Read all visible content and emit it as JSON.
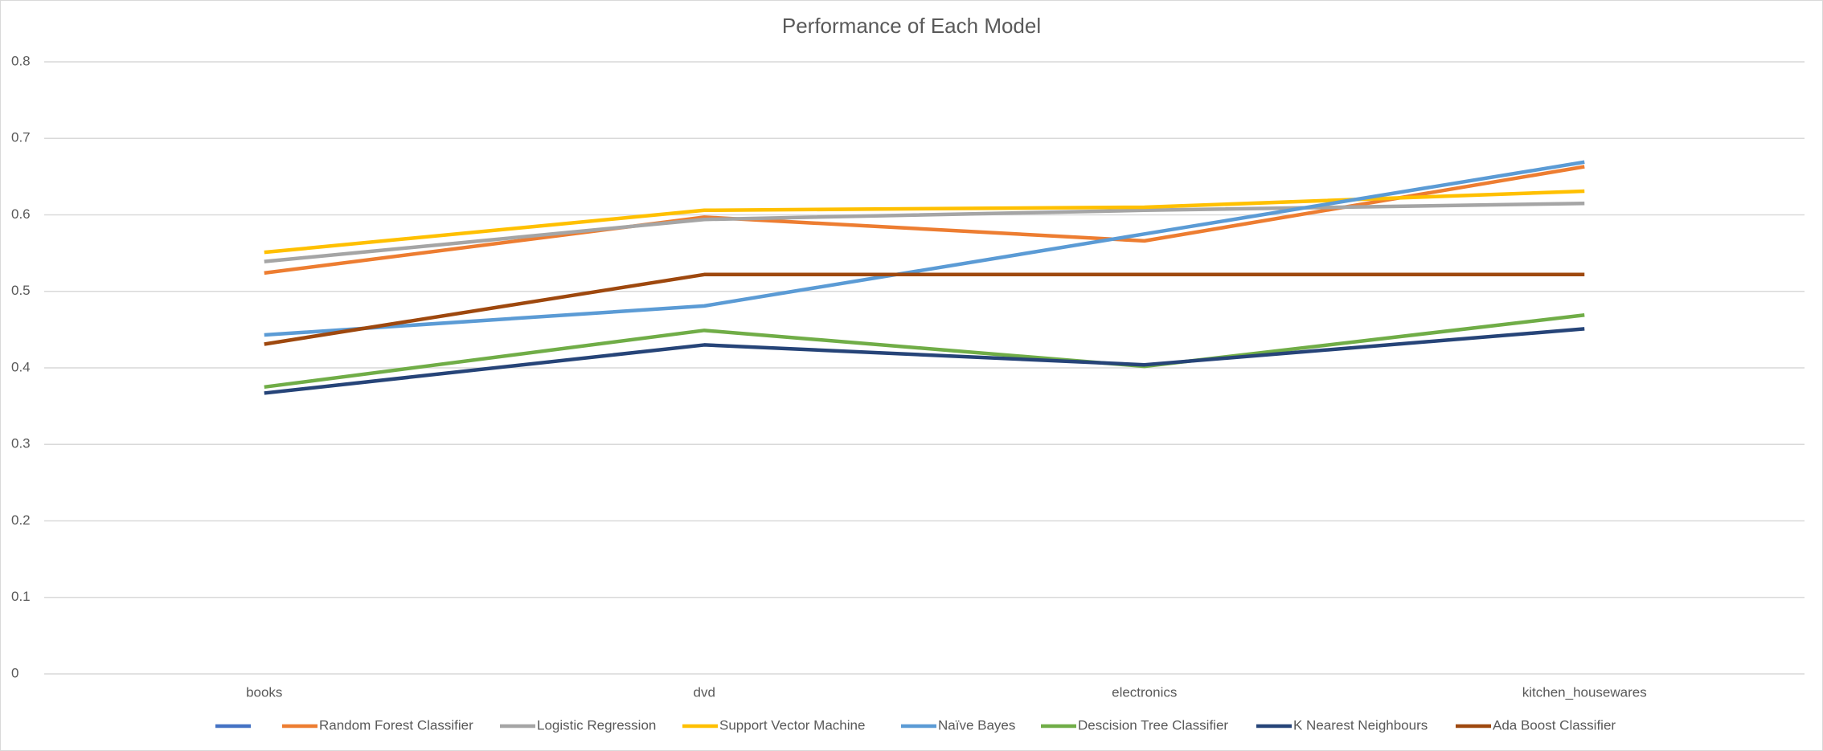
{
  "chart_data": {
    "type": "line",
    "title": "Performance of Each Model",
    "categories": [
      "books",
      "dvd",
      "electronics",
      "kitchen_housewares"
    ],
    "ylim": [
      0,
      0.8
    ],
    "yticks": [
      0,
      0.1,
      0.2,
      0.3,
      0.4,
      0.5,
      0.6,
      0.7,
      0.8
    ],
    "grid": true,
    "legend": "bottom",
    "series": [
      {
        "name": null,
        "color": "#4472C4",
        "values": [
          null,
          null,
          null,
          null
        ]
      },
      {
        "name": "Random Forest Classifier",
        "color": "#ED7D31",
        "values": [
          0.524,
          0.597,
          0.566,
          0.663
        ]
      },
      {
        "name": "Logistic Regression",
        "color": "#A5A5A5",
        "values": [
          0.539,
          0.594,
          0.606,
          0.615
        ]
      },
      {
        "name": "Support Vector Machine",
        "color": "#FFC000",
        "values": [
          0.551,
          0.606,
          0.61,
          0.631
        ]
      },
      {
        "name": "Naïve Bayes",
        "color": "#5B9BD5",
        "values": [
          0.443,
          0.481,
          0.575,
          0.669
        ]
      },
      {
        "name": "Descision Tree Classifier",
        "color": "#70AD47",
        "values": [
          0.375,
          0.449,
          0.402,
          0.469
        ]
      },
      {
        "name": "K Nearest Neighbours",
        "color": "#264478",
        "values": [
          0.367,
          0.43,
          0.404,
          0.451
        ]
      },
      {
        "name": "Ada Boost Classifier",
        "color": "#9E480E",
        "values": [
          0.431,
          0.522,
          0.522,
          0.522
        ]
      }
    ]
  }
}
